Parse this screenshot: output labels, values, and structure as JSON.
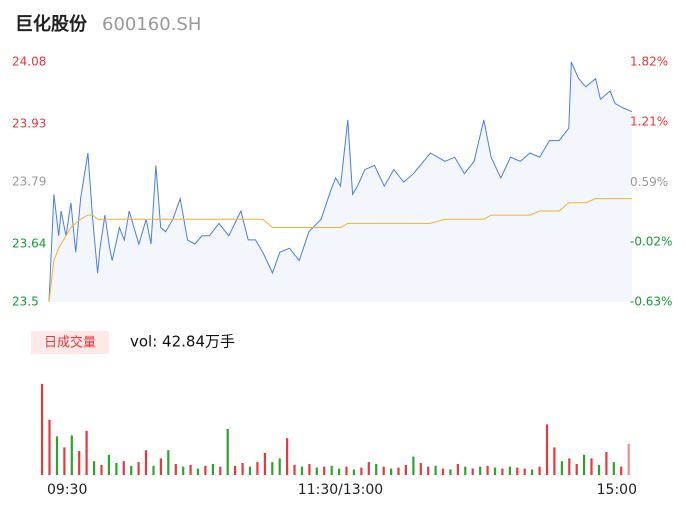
{
  "header": {
    "name": "巨化股份",
    "code": "600160.SH"
  },
  "chart_data": [
    {
      "type": "line",
      "x": [
        0,
        2,
        4,
        5,
        7,
        9,
        11,
        13,
        16,
        18,
        20,
        21,
        23,
        25,
        26,
        29,
        31,
        33,
        36,
        37,
        40,
        42,
        44,
        46,
        48,
        51,
        54,
        57,
        60,
        63,
        66,
        70,
        74,
        79,
        82,
        85,
        88,
        92,
        95,
        99,
        103,
        107,
        112,
        116,
        118,
        120,
        123,
        125,
        127,
        130,
        134,
        138,
        142,
        146,
        150,
        157,
        163,
        167,
        171,
        175,
        179,
        182,
        186,
        190,
        194,
        198,
        202,
        206,
        210,
        214,
        215,
        218,
        221,
        225,
        227,
        231,
        233,
        236,
        240
      ],
      "series": [
        {
          "color": "#4a7fe0",
          "values": [
            23.5,
            23.76,
            23.66,
            23.72,
            23.66,
            23.74,
            23.62,
            23.75,
            23.86,
            23.7,
            23.57,
            23.63,
            23.71,
            23.63,
            23.6,
            23.68,
            23.65,
            23.72,
            23.66,
            23.64,
            23.7,
            23.64,
            23.83,
            23.68,
            23.67,
            23.7,
            23.75,
            23.65,
            23.64,
            23.66,
            23.66,
            23.69,
            23.66,
            23.72,
            23.65,
            23.65,
            23.62,
            23.57,
            23.62,
            23.63,
            23.6,
            23.67,
            23.7,
            23.77,
            23.8,
            23.78,
            23.94,
            23.76,
            23.78,
            23.82,
            23.83,
            23.78,
            23.82,
            23.79,
            23.81,
            23.86,
            23.84,
            23.85,
            23.81,
            23.84,
            23.94,
            23.85,
            23.8,
            23.85,
            23.84,
            23.86,
            23.85,
            23.89,
            23.89,
            23.92,
            24.08,
            24.04,
            24.02,
            24.04,
            23.99,
            24.01,
            23.98,
            23.97,
            23.96
          ]
        },
        {
          "color": "#f0b429",
          "values": [
            23.5,
            23.6,
            23.63,
            23.64,
            23.66,
            23.68,
            23.69,
            23.7,
            23.71,
            23.71,
            23.7,
            23.7,
            23.7,
            23.7,
            23.7,
            23.7,
            23.7,
            23.7,
            23.7,
            23.7,
            23.7,
            23.7,
            23.7,
            23.7,
            23.7,
            23.7,
            23.7,
            23.7,
            23.7,
            23.7,
            23.7,
            23.7,
            23.7,
            23.7,
            23.7,
            23.7,
            23.7,
            23.68,
            23.68,
            23.68,
            23.68,
            23.68,
            23.68,
            23.68,
            23.68,
            23.68,
            23.69,
            23.69,
            23.69,
            23.69,
            23.69,
            23.69,
            23.69,
            23.69,
            23.69,
            23.69,
            23.7,
            23.7,
            23.7,
            23.7,
            23.7,
            23.71,
            23.71,
            23.71,
            23.71,
            23.71,
            23.72,
            23.72,
            23.72,
            23.74,
            23.74,
            23.74,
            23.74,
            23.75,
            23.75,
            23.75,
            23.75,
            23.75,
            23.75
          ]
        }
      ],
      "fill": "#f3f6fd",
      "xlim": [
        0,
        240
      ],
      "xticks": [
        {
          "value": 0,
          "label": "09:30"
        },
        {
          "value": 120,
          "label": "11:30/13:00"
        },
        {
          "value": 240,
          "label": "15:00"
        }
      ],
      "ylim": [
        23.5,
        24.08
      ],
      "yticks": [
        23.5,
        23.64,
        23.79,
        23.93,
        24.08
      ],
      "ytick_colors": [
        "#1a9a3a",
        "#1a9a3a",
        "#999999",
        "#e8373d",
        "#e8373d"
      ],
      "y2lim": [
        -0.63,
        1.82
      ],
      "y2ticks": [
        {
          "value": -0.63,
          "label": "-0.63%"
        },
        {
          "value": -0.02,
          "label": "-0.02%"
        },
        {
          "value": 0.59,
          "label": "0.59%"
        },
        {
          "value": 1.21,
          "label": "1.21%"
        },
        {
          "value": 1.82,
          "label": "1.82%"
        }
      ]
    },
    {
      "type": "bar",
      "button": "日成交量",
      "annotation": "vol: 42.84万手",
      "ylim": [
        0,
        10000
      ],
      "values": [
        9900,
        6000,
        4200,
        3000,
        4300,
        2600,
        4800,
        1500,
        1100,
        2200,
        1300,
        1500,
        1000,
        1400,
        2700,
        1000,
        1800,
        2700,
        1200,
        900,
        1100,
        700,
        1000,
        1200,
        900,
        5000,
        1000,
        1300,
        900,
        1400,
        2400,
        1400,
        1800,
        4000,
        1100,
        900,
        1200,
        800,
        900,
        1000,
        700,
        900,
        600,
        800,
        1400,
        1200,
        900,
        700,
        800,
        1100,
        2000,
        1300,
        900,
        1000,
        700,
        600,
        1200,
        900,
        700,
        900,
        1000,
        800,
        700,
        900,
        800,
        700,
        600,
        900,
        5500,
        3000,
        1500,
        1800,
        1200,
        2200,
        1800,
        1100,
        2500,
        1400,
        900,
        3400
      ],
      "colors": [
        "#e8373d",
        "#e8373d",
        "#2aa52a",
        "#e8373d",
        "#2aa52a",
        "#e8373d",
        "#e8373d",
        "#2aa52a",
        "#e8373d",
        "#2aa52a",
        "#2aa52a",
        "#e8373d",
        "#2aa52a",
        "#e8373d",
        "#e8373d",
        "#2aa52a",
        "#e8373d",
        "#2aa52a",
        "#e8373d",
        "#2aa52a",
        "#e8373d",
        "#2aa52a",
        "#e8373d",
        "#2aa52a",
        "#e8373d",
        "#2aa52a",
        "#e8373d",
        "#e8373d",
        "#2aa52a",
        "#e8373d",
        "#e8373d",
        "#2aa52a",
        "#2aa52a",
        "#e8373d",
        "#e8373d",
        "#2aa52a",
        "#e8373d",
        "#2aa52a",
        "#e8373d",
        "#2aa52a",
        "#2aa52a",
        "#e8373d",
        "#2aa52a",
        "#e8373d",
        "#e8373d",
        "#2aa52a",
        "#e8373d",
        "#2aa52a",
        "#e8373d",
        "#e8373d",
        "#2aa52a",
        "#e8373d",
        "#e8373d",
        "#2aa52a",
        "#e8373d",
        "#2aa52a",
        "#e8373d",
        "#2aa52a",
        "#e8373d",
        "#2aa52a",
        "#e8373d",
        "#2aa52a",
        "#e8373d",
        "#2aa52a",
        "#e8373d",
        "#e8373d",
        "#2aa52a",
        "#e8373d",
        "#e8373d",
        "#e8373d",
        "#2aa52a",
        "#e8373d",
        "#e8373d",
        "#2aa52a",
        "#e8373d",
        "#2aa52a",
        "#e8373d",
        "#2aa52a",
        "#e8373d",
        "#f08a8e"
      ]
    }
  ]
}
